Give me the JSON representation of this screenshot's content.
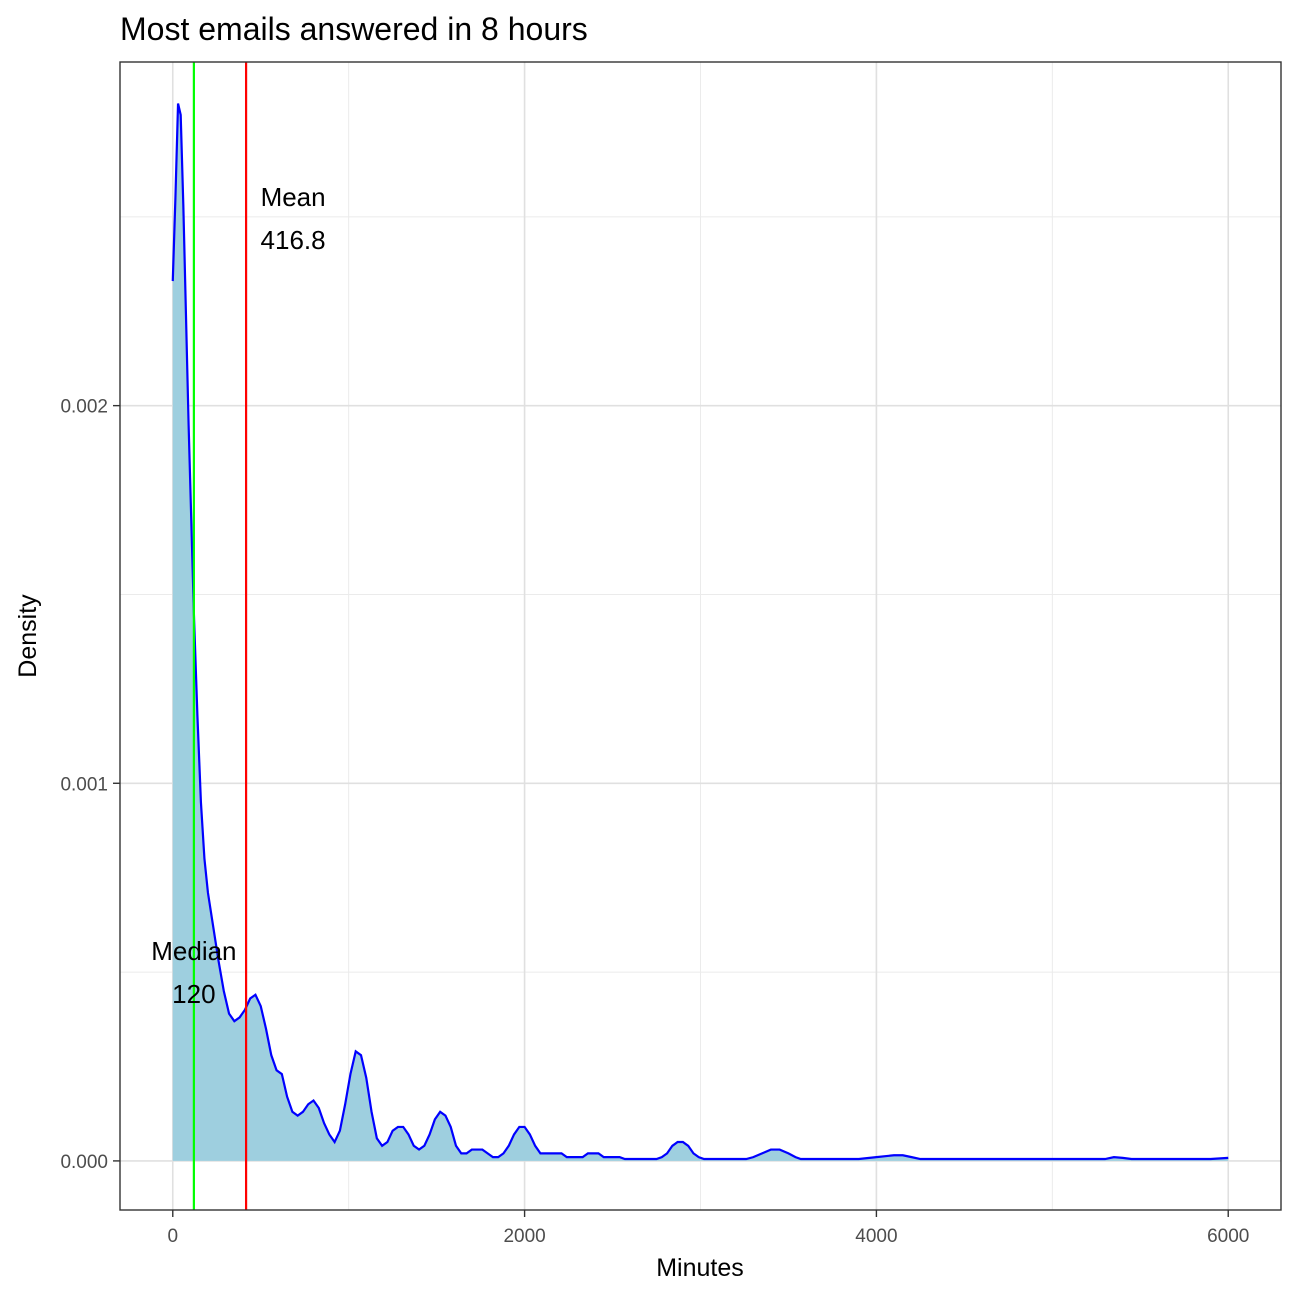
{
  "chart_data": {
    "type": "area",
    "title": "Most emails answered in 8 hours",
    "xlabel": "Minutes",
    "ylabel": "Density",
    "xlim": [
      -300,
      6300
    ],
    "ylim": [
      -0.00013,
      0.00291
    ],
    "x_ticks": [
      0,
      2000,
      4000,
      6000
    ],
    "x_tick_labels": [
      "0",
      "2000",
      "4000",
      "6000"
    ],
    "x_minor_gridlines": [
      1000,
      3000,
      5000
    ],
    "y_ticks": [
      0.0,
      0.001,
      0.002
    ],
    "y_tick_labels": [
      "0.000",
      "0.001",
      "0.002"
    ],
    "y_minor_gridlines": [
      0.0005,
      0.0015,
      0.0025
    ],
    "grid": true,
    "fill_color": "#9ecfdf",
    "line_color": "#0000ff",
    "density_curve": {
      "x": [
        0,
        15,
        30,
        45,
        60,
        75,
        90,
        105,
        120,
        140,
        160,
        180,
        200,
        230,
        260,
        290,
        320,
        350,
        380,
        410,
        440,
        470,
        500,
        530,
        560,
        590,
        620,
        650,
        680,
        710,
        740,
        770,
        800,
        830,
        860,
        890,
        920,
        950,
        980,
        1010,
        1040,
        1070,
        1100,
        1130,
        1160,
        1190,
        1220,
        1250,
        1280,
        1310,
        1340,
        1370,
        1400,
        1430,
        1460,
        1490,
        1520,
        1550,
        1580,
        1610,
        1640,
        1670,
        1700,
        1730,
        1760,
        1790,
        1820,
        1850,
        1880,
        1910,
        1940,
        1970,
        2000,
        2030,
        2060,
        2090,
        2120,
        2150,
        2180,
        2210,
        2240,
        2270,
        2300,
        2330,
        2360,
        2390,
        2420,
        2450,
        2480,
        2510,
        2540,
        2570,
        2600,
        2630,
        2660,
        2690,
        2720,
        2750,
        2780,
        2810,
        2840,
        2870,
        2900,
        2930,
        2960,
        2990,
        3020,
        3050,
        3080,
        3110,
        3140,
        3170,
        3200,
        3230,
        3260,
        3300,
        3350,
        3400,
        3450,
        3500,
        3540,
        3570,
        3600,
        3630,
        3660,
        3700,
        3750,
        3800,
        3900,
        4000,
        4100,
        4150,
        4200,
        4250,
        4300,
        4400,
        4500,
        4600,
        4700,
        4800,
        4900,
        5000,
        5100,
        5200,
        5300,
        5350,
        5400,
        5450,
        5500,
        5600,
        5700,
        5800,
        5900,
        6000
      ],
      "y": [
        0.00233,
        0.00255,
        0.0028,
        0.00277,
        0.00253,
        0.00224,
        0.00195,
        0.0017,
        0.00145,
        0.00118,
        0.00095,
        0.0008,
        0.00071,
        0.00062,
        0.00053,
        0.00045,
        0.00039,
        0.00037,
        0.00038,
        0.0004,
        0.00043,
        0.00044,
        0.00041,
        0.00035,
        0.00028,
        0.00024,
        0.00023,
        0.00017,
        0.00013,
        0.00012,
        0.00013,
        0.00015,
        0.00016,
        0.00014,
        0.0001,
        7e-05,
        5e-05,
        8e-05,
        0.00015,
        0.00023,
        0.00029,
        0.00028,
        0.00022,
        0.00013,
        6e-05,
        4e-05,
        5e-05,
        8e-05,
        9e-05,
        9e-05,
        7e-05,
        4e-05,
        3e-05,
        4e-05,
        7e-05,
        0.00011,
        0.00013,
        0.00012,
        9e-05,
        4e-05,
        2e-05,
        2e-05,
        3e-05,
        3e-05,
        3e-05,
        2e-05,
        1e-05,
        1e-05,
        2e-05,
        4e-05,
        7e-05,
        9e-05,
        9e-05,
        7e-05,
        4e-05,
        2e-05,
        2e-05,
        2e-05,
        2e-05,
        2e-05,
        1e-05,
        1e-05,
        1e-05,
        1e-05,
        2e-05,
        2e-05,
        2e-05,
        1e-05,
        1e-05,
        1e-05,
        1e-05,
        5e-06,
        5e-06,
        5e-06,
        5e-06,
        5e-06,
        5e-06,
        5e-06,
        1e-05,
        2e-05,
        4e-05,
        5e-05,
        5e-05,
        4e-05,
        2e-05,
        1e-05,
        5e-06,
        5e-06,
        5e-06,
        5e-06,
        5e-06,
        5e-06,
        5e-06,
        5e-06,
        5e-06,
        1e-05,
        2e-05,
        3e-05,
        3e-05,
        2e-05,
        1e-05,
        5e-06,
        5e-06,
        5e-06,
        5e-06,
        5e-06,
        5e-06,
        5e-06,
        5e-06,
        1e-05,
        1.5e-05,
        1.5e-05,
        1e-05,
        5e-06,
        5e-06,
        5e-06,
        5e-06,
        5e-06,
        5e-06,
        5e-06,
        5e-06,
        5e-06,
        5e-06,
        5e-06,
        5e-06,
        1e-05,
        8e-06,
        5e-06,
        5e-06,
        5e-06,
        5e-06,
        5e-06,
        5e-06,
        8e-06
      ]
    },
    "reference_lines": [
      {
        "label": "Median",
        "value": 120,
        "value_label": "120",
        "color": "#00ff00"
      },
      {
        "label": "Mean",
        "value": 416.8,
        "value_label": "416.8",
        "color": "#ff0000"
      }
    ]
  }
}
